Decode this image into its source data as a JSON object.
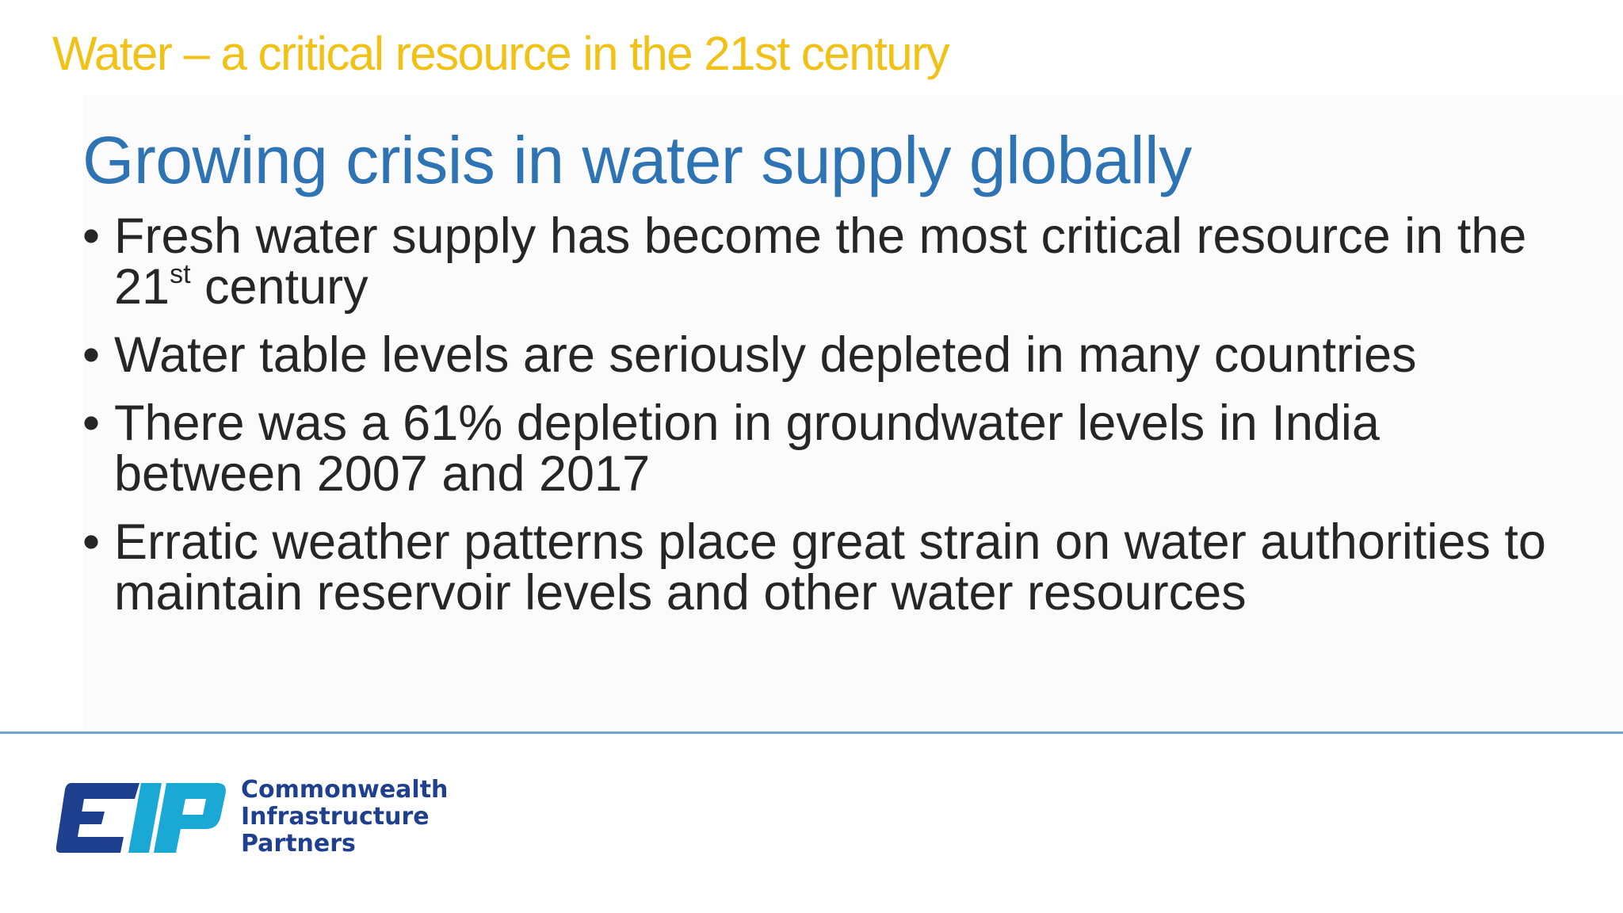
{
  "slide": {
    "section_title": "Water – a critical resource in the 21st century",
    "main_title": "Growing crisis in water supply globally",
    "bullet_char": "•",
    "bullets": [
      {
        "text_before": "Fresh water supply has become the most critical resource in the 21",
        "superscript": "st",
        "text_after": " century"
      },
      {
        "text": "Water table levels are seriously depleted in many countries"
      },
      {
        "text": "There was a 61% depletion in groundwater levels in India between 2007 and 2017"
      },
      {
        "text": "Erratic weather patterns place great strain on water authorities to maintain reservoir levels and other water resources"
      }
    ]
  },
  "footer": {
    "logo": {
      "name": "CIP",
      "lines": [
        "Commonwealth",
        "Infrastructure",
        "Partners"
      ]
    }
  },
  "colors": {
    "section_title": "#f2c116",
    "main_title": "#2e74b5",
    "body_text": "#262626",
    "divider": "#6ea5d1",
    "logo_navy": "#1f3f8f",
    "logo_cyan": "#1aa9d4"
  }
}
